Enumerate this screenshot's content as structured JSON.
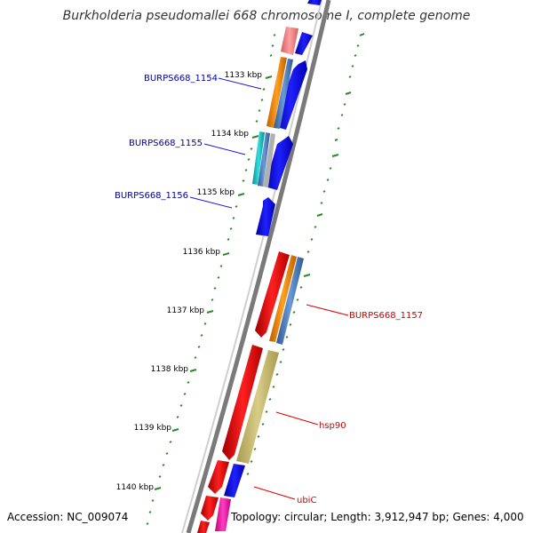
{
  "title": "Burkholderia pseudomallei 668 chromosome I, complete genome",
  "footer": {
    "accession": "Accession: NC_009074",
    "topology": "Topology: circular; Length: 3,912,947 bp; Genes: 4,000"
  },
  "ticks": [
    "1133 kbp",
    "1134 kbp",
    "1135 kbp",
    "1136 kbp",
    "1137 kbp",
    "1138 kbp",
    "1139 kbp",
    "1140 kbp"
  ],
  "gene_labels": [
    {
      "text": "BURPS668_1154",
      "color": "#00009c"
    },
    {
      "text": "BURPS668_1155",
      "color": "#00009c"
    },
    {
      "text": "BURPS668_1156",
      "color": "#00009c"
    },
    {
      "text": "BURPS668_1157",
      "color": "#d00000"
    },
    {
      "text": "hsp90",
      "color": "#d00000"
    },
    {
      "text": "ubiC",
      "color": "#d00000"
    }
  ],
  "colors": {
    "backbone": "#808080",
    "gc_skew": "#2a8a2a",
    "cds_forward": "#0000ee",
    "cds_reverse": "#ee0000",
    "feature_orange": "#ff8c00",
    "feature_steelblue": "#4a7fc0",
    "feature_khaki": "#c4b870",
    "feature_cyan": "#20c0c0",
    "feature_pink": "#f08080",
    "feature_magenta": "#ff20b0"
  }
}
